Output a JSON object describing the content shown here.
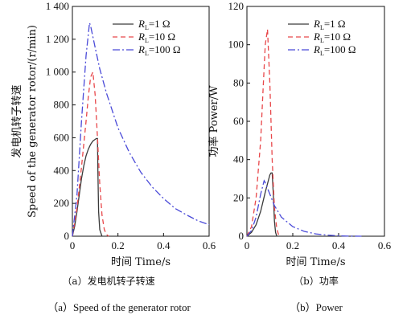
{
  "chart_data": [
    {
      "type": "line",
      "xlabel": "时间 Time/s",
      "ylabel_lines": [
        "发电机转子转速",
        "Speed of the generator rotor/(r/min)"
      ],
      "xlim": [
        0,
        0.6
      ],
      "ylim": [
        0,
        1400
      ],
      "x_ticks": [
        "0",
        "0.2",
        "0.4",
        "0.6"
      ],
      "y_ticks": [
        "0",
        "200",
        "400",
        "600",
        "800",
        "1 000",
        "1 200",
        "1 400"
      ],
      "grid": false,
      "legend_position": "top-right",
      "series": [
        {
          "name": "RL=1 Ω",
          "legend_var": "R",
          "legend_sub": "L",
          "legend_val": "=1 Ω",
          "color": "#3a3a3a",
          "dash": "solid",
          "x": [
            0,
            0.01,
            0.02,
            0.03,
            0.04,
            0.05,
            0.06,
            0.07,
            0.08,
            0.09,
            0.1,
            0.105,
            0.11,
            0.112,
            0.115,
            0.12,
            0.13
          ],
          "y": [
            0,
            60,
            150,
            250,
            350,
            430,
            490,
            530,
            560,
            580,
            590,
            595,
            595,
            400,
            150,
            40,
            0
          ]
        },
        {
          "name": "RL=10 Ω",
          "legend_var": "R",
          "legend_sub": "L",
          "legend_val": "=10 Ω",
          "color": "#e8474a",
          "dash": "6,4",
          "x": [
            0,
            0.02,
            0.04,
            0.06,
            0.07,
            0.08,
            0.09,
            0.1,
            0.11,
            0.12,
            0.13,
            0.14,
            0.15,
            0.16
          ],
          "y": [
            0,
            170,
            420,
            700,
            850,
            970,
            1000,
            860,
            600,
            320,
            130,
            40,
            10,
            0
          ]
        },
        {
          "name": "RL=100 Ω",
          "legend_var": "R",
          "legend_sub": "L",
          "legend_val": "=100 Ω",
          "color": "#4a4ad8",
          "dash": "9,3,2,3",
          "x": [
            0,
            0.02,
            0.04,
            0.06,
            0.075,
            0.08,
            0.1,
            0.12,
            0.15,
            0.2,
            0.25,
            0.3,
            0.35,
            0.4,
            0.45,
            0.5,
            0.55,
            0.6
          ],
          "y": [
            0,
            250,
            700,
            1100,
            1300,
            1280,
            1150,
            1020,
            870,
            660,
            510,
            390,
            300,
            230,
            170,
            130,
            95,
            70
          ]
        }
      ]
    },
    {
      "type": "line",
      "xlabel": "时间 Time/s",
      "ylabel_lines": [
        "功率 Power/W"
      ],
      "xlim": [
        0,
        0.6
      ],
      "ylim": [
        0,
        120
      ],
      "x_ticks": [
        "0",
        "0.2",
        "0.4",
        "0.6"
      ],
      "y_ticks": [
        "0",
        "20",
        "40",
        "60",
        "80",
        "100",
        "120"
      ],
      "grid": false,
      "legend_position": "top-right",
      "series": [
        {
          "name": "RL=1 Ω",
          "legend_var": "R",
          "legend_sub": "L",
          "legend_val": "=1 Ω",
          "color": "#3a3a3a",
          "dash": "solid",
          "x": [
            0,
            0.02,
            0.04,
            0.06,
            0.08,
            0.1,
            0.105,
            0.11,
            0.115,
            0.12,
            0.125,
            0.13
          ],
          "y": [
            0,
            2,
            6,
            13,
            23,
            32,
            33,
            33,
            22,
            8,
            2,
            0
          ]
        },
        {
          "name": "RL=10 Ω",
          "legend_var": "R",
          "legend_sub": "L",
          "legend_val": "=10 Ω",
          "color": "#e8474a",
          "dash": "6,4",
          "x": [
            0,
            0.02,
            0.04,
            0.06,
            0.07,
            0.08,
            0.09,
            0.1,
            0.11,
            0.12,
            0.13,
            0.14
          ],
          "y": [
            0,
            5,
            20,
            50,
            75,
            100,
            108,
            80,
            40,
            15,
            4,
            0
          ]
        },
        {
          "name": "RL=100 Ω",
          "legend_var": "R",
          "legend_sub": "L",
          "legend_val": "=100 Ω",
          "color": "#4a4ad8",
          "dash": "9,3,2,3",
          "x": [
            0,
            0.02,
            0.04,
            0.06,
            0.075,
            0.08,
            0.1,
            0.12,
            0.15,
            0.2,
            0.25,
            0.3,
            0.35,
            0.4,
            0.45,
            0.5
          ],
          "y": [
            0,
            3,
            10,
            22,
            29,
            28,
            22,
            16,
            10,
            5,
            2.5,
            1.2,
            0.6,
            0.2,
            0.05,
            0
          ]
        }
      ]
    }
  ],
  "captions": [
    {
      "zh": "（a）发电机转子转速",
      "en": "（a）Speed of the generator rotor"
    },
    {
      "zh": "（b）功率",
      "en": "（b）Power"
    }
  ]
}
